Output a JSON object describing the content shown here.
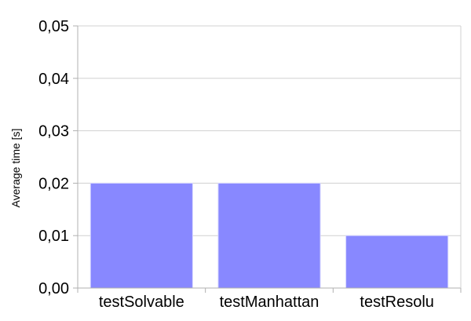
{
  "chart_data": {
    "type": "bar",
    "title": "",
    "xlabel": "",
    "ylabel": "Average time [s]",
    "categories": [
      "testSolvable",
      "testManhattan",
      "testResolu"
    ],
    "values": [
      0.02,
      0.02,
      0.01
    ],
    "ylim": [
      0,
      0.05
    ],
    "yticks": [
      0,
      0.01,
      0.02,
      0.03,
      0.04,
      0.05
    ],
    "ytick_labels": [
      "0,00",
      "0,01",
      "0,02",
      "0,03",
      "0,04",
      "0,05"
    ],
    "grid": true,
    "legend": "none",
    "colors": {
      "bar": "#8888ff",
      "grid": "#d0d0d0",
      "axis": "#b0b0b0",
      "text": "#000000"
    }
  }
}
